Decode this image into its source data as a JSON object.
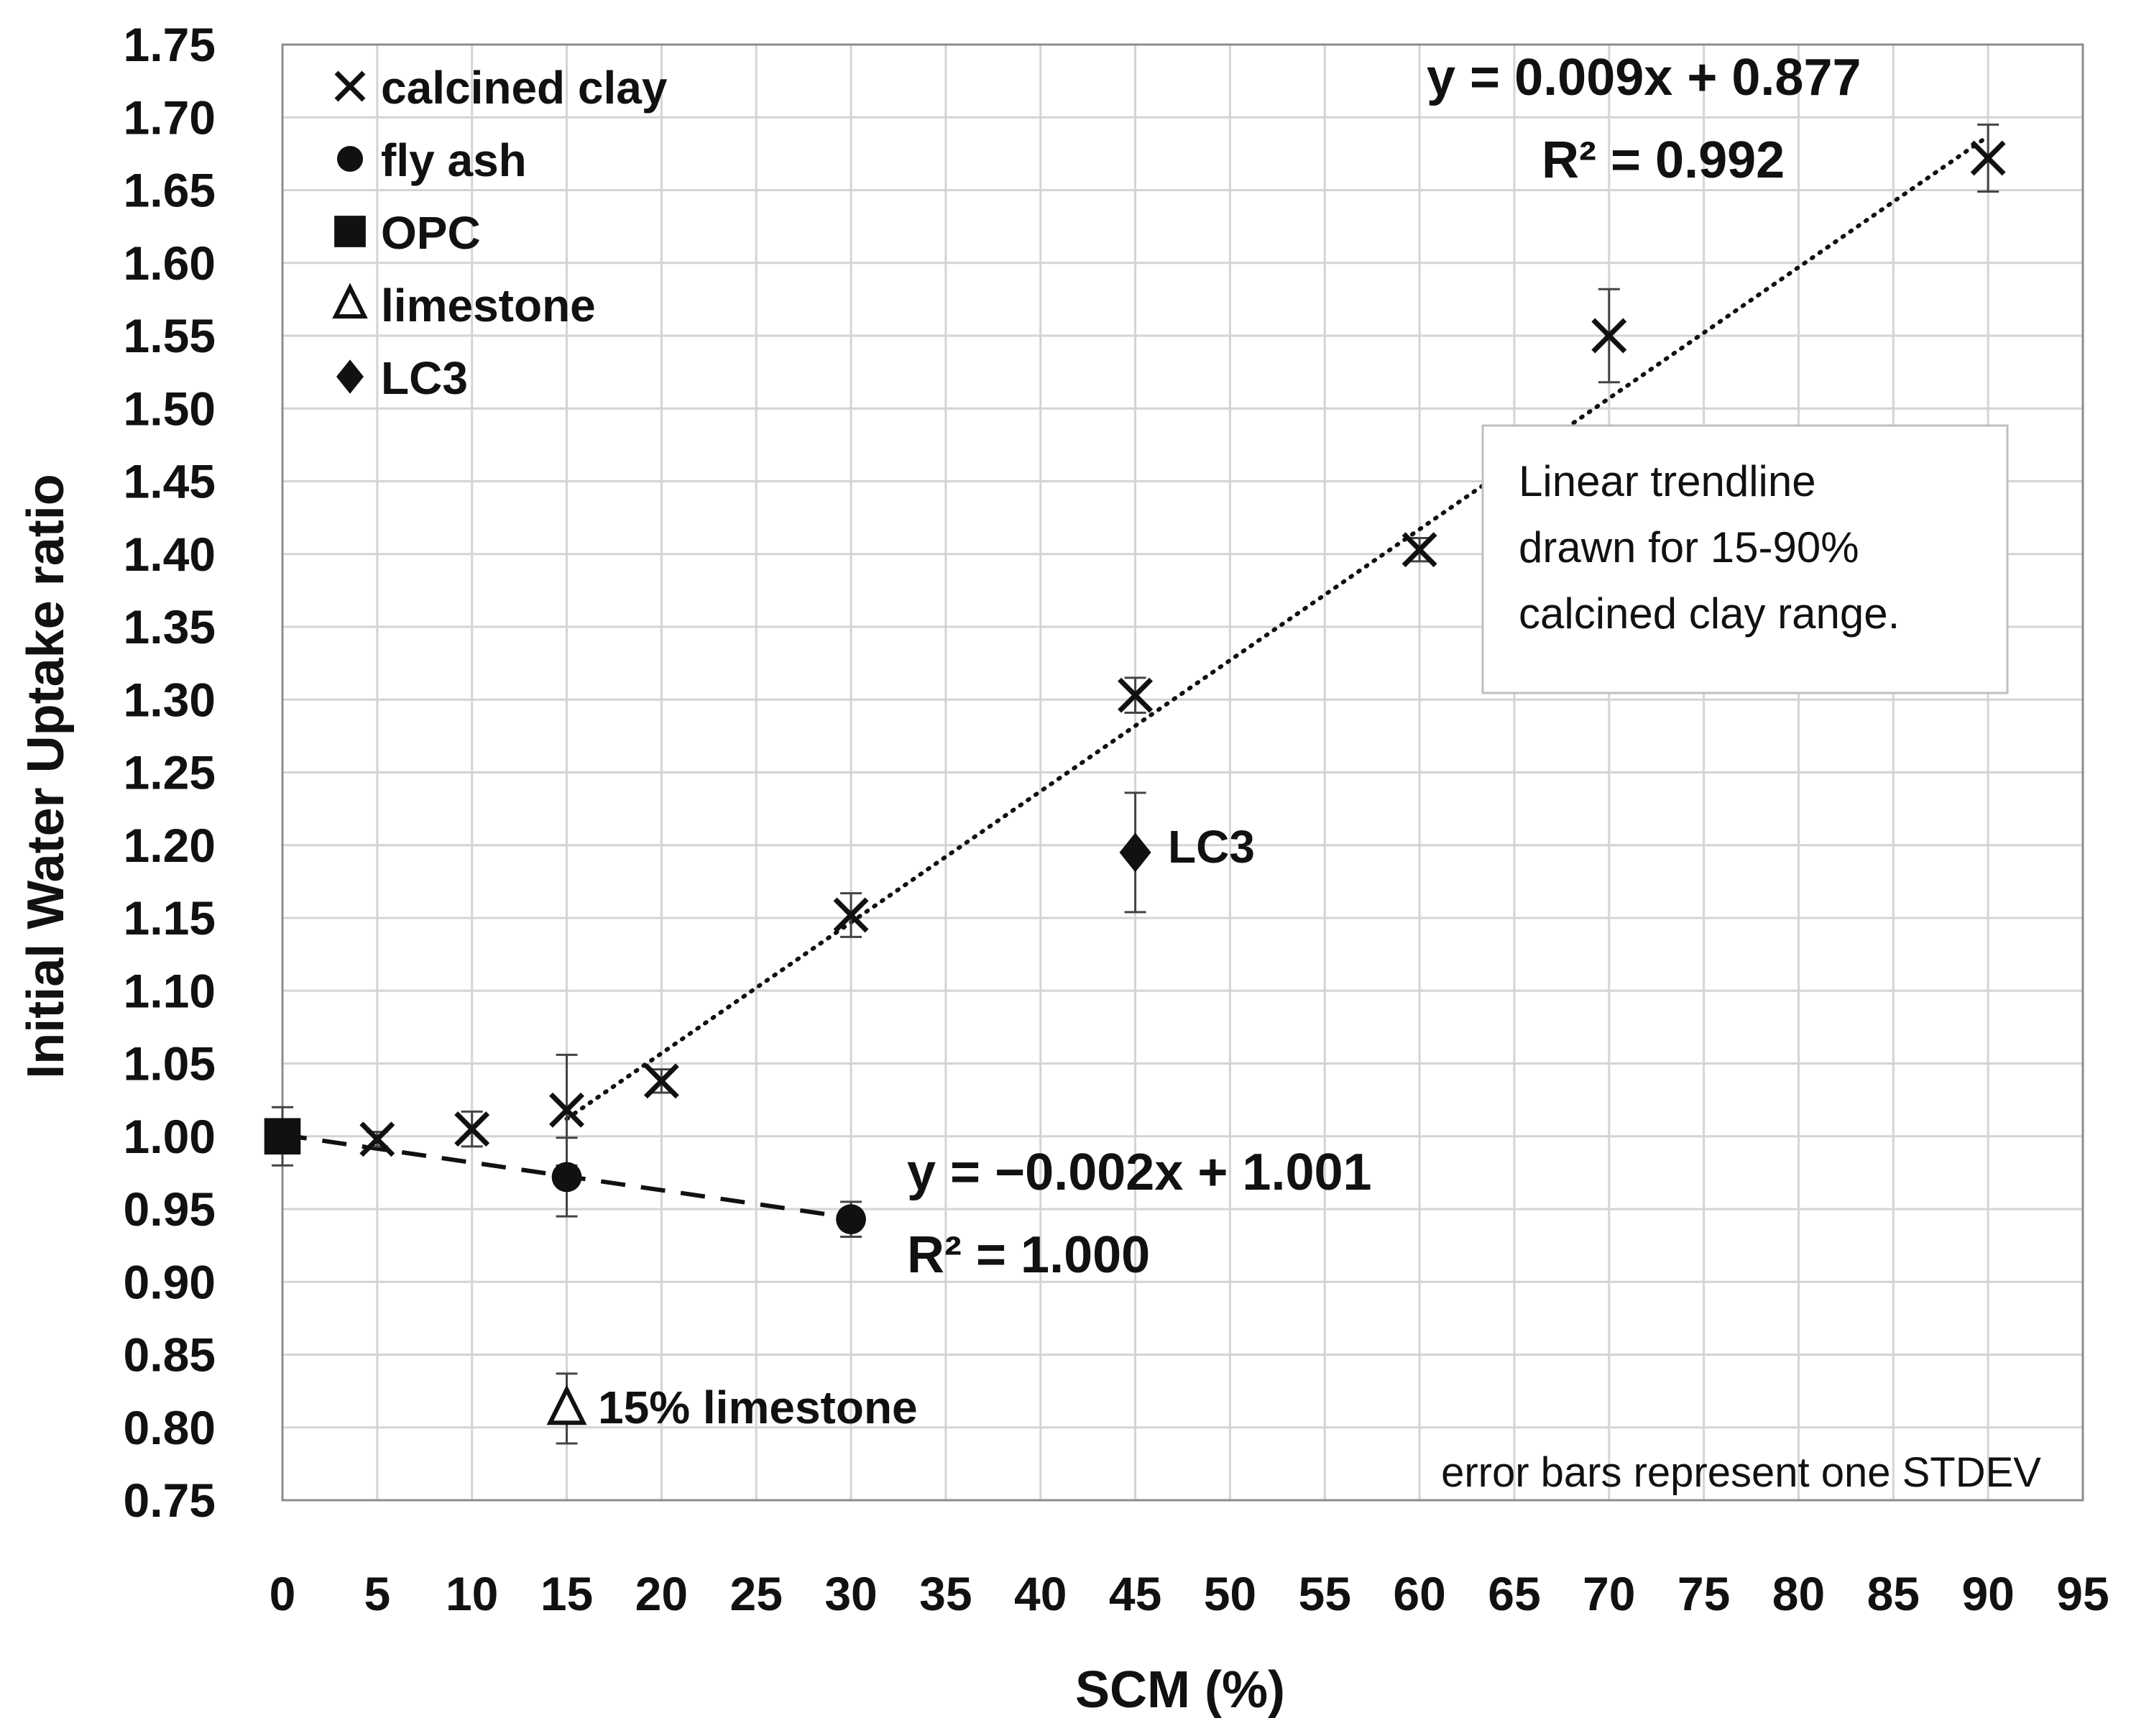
{
  "chart_data": {
    "type": "scatter",
    "xlabel": "SCM (%)",
    "ylabel": "Initial Water Uptake ratio",
    "xlim": [
      0,
      95
    ],
    "ylim": [
      0.75,
      1.75
    ],
    "x_ticks": [
      "0",
      "5",
      "10",
      "15",
      "20",
      "25",
      "30",
      "35",
      "40",
      "45",
      "50",
      "55",
      "60",
      "65",
      "70",
      "75",
      "80",
      "85",
      "90",
      "95"
    ],
    "y_ticks": [
      "0.75",
      "0.80",
      "0.85",
      "0.90",
      "0.95",
      "1.00",
      "1.05",
      "1.10",
      "1.15",
      "1.20",
      "1.25",
      "1.30",
      "1.35",
      "1.40",
      "1.45",
      "1.50",
      "1.55",
      "1.60",
      "1.65",
      "1.70",
      "1.75"
    ],
    "grid": true,
    "legend_position": "top-left",
    "series": [
      {
        "name": "calcined clay",
        "marker": "x",
        "points": [
          {
            "x": 5,
            "y": 0.998,
            "err": 0.005
          },
          {
            "x": 10,
            "y": 1.005,
            "err": 0.012
          },
          {
            "x": 15,
            "y": 1.018,
            "err": 0.038
          },
          {
            "x": 20,
            "y": 1.038,
            "err": 0.008
          },
          {
            "x": 30,
            "y": 1.152,
            "err": 0.015
          },
          {
            "x": 45,
            "y": 1.303,
            "err": 0.012
          },
          {
            "x": 60,
            "y": 1.403,
            "err": 0.008
          },
          {
            "x": 70,
            "y": 1.55,
            "err": 0.032
          },
          {
            "x": 90,
            "y": 1.672,
            "err": 0.023
          }
        ]
      },
      {
        "name": "fly ash",
        "marker": "circle",
        "points": [
          {
            "x": 15,
            "y": 0.972,
            "err": 0.027
          },
          {
            "x": 30,
            "y": 0.943,
            "err": 0.012
          }
        ]
      },
      {
        "name": "OPC",
        "marker": "square",
        "points": [
          {
            "x": 0,
            "y": 1.0,
            "err": 0.02
          }
        ]
      },
      {
        "name": "limestone",
        "marker": "triangle-open",
        "points": [
          {
            "x": 15,
            "y": 0.813,
            "err": 0.024
          }
        ]
      },
      {
        "name": "LC3",
        "marker": "diamond",
        "points": [
          {
            "x": 45,
            "y": 1.195,
            "err": 0.041
          }
        ]
      }
    ],
    "trendlines": [
      {
        "series": "calcined clay",
        "style": "dotted",
        "x_range": [
          15,
          90
        ],
        "slope": 0.009,
        "intercept": 0.877,
        "equation": "y = 0.009x + 0.877",
        "r2": "R² = 0.992"
      },
      {
        "series": "fly ash",
        "style": "dashed",
        "x_range": [
          0,
          30
        ],
        "slope": -0.0019,
        "intercept": 1.001,
        "equation": "y = −0.002x + 1.001",
        "r2": "R² = 1.000"
      }
    ],
    "annotations": {
      "lc3_label": "LC3",
      "limestone_label": "15% limestone",
      "note_lines": [
        "Linear trendline",
        "drawn for 15-90%",
        "calcined clay range."
      ],
      "error_bar_note": "error bars represent one STDEV"
    }
  }
}
